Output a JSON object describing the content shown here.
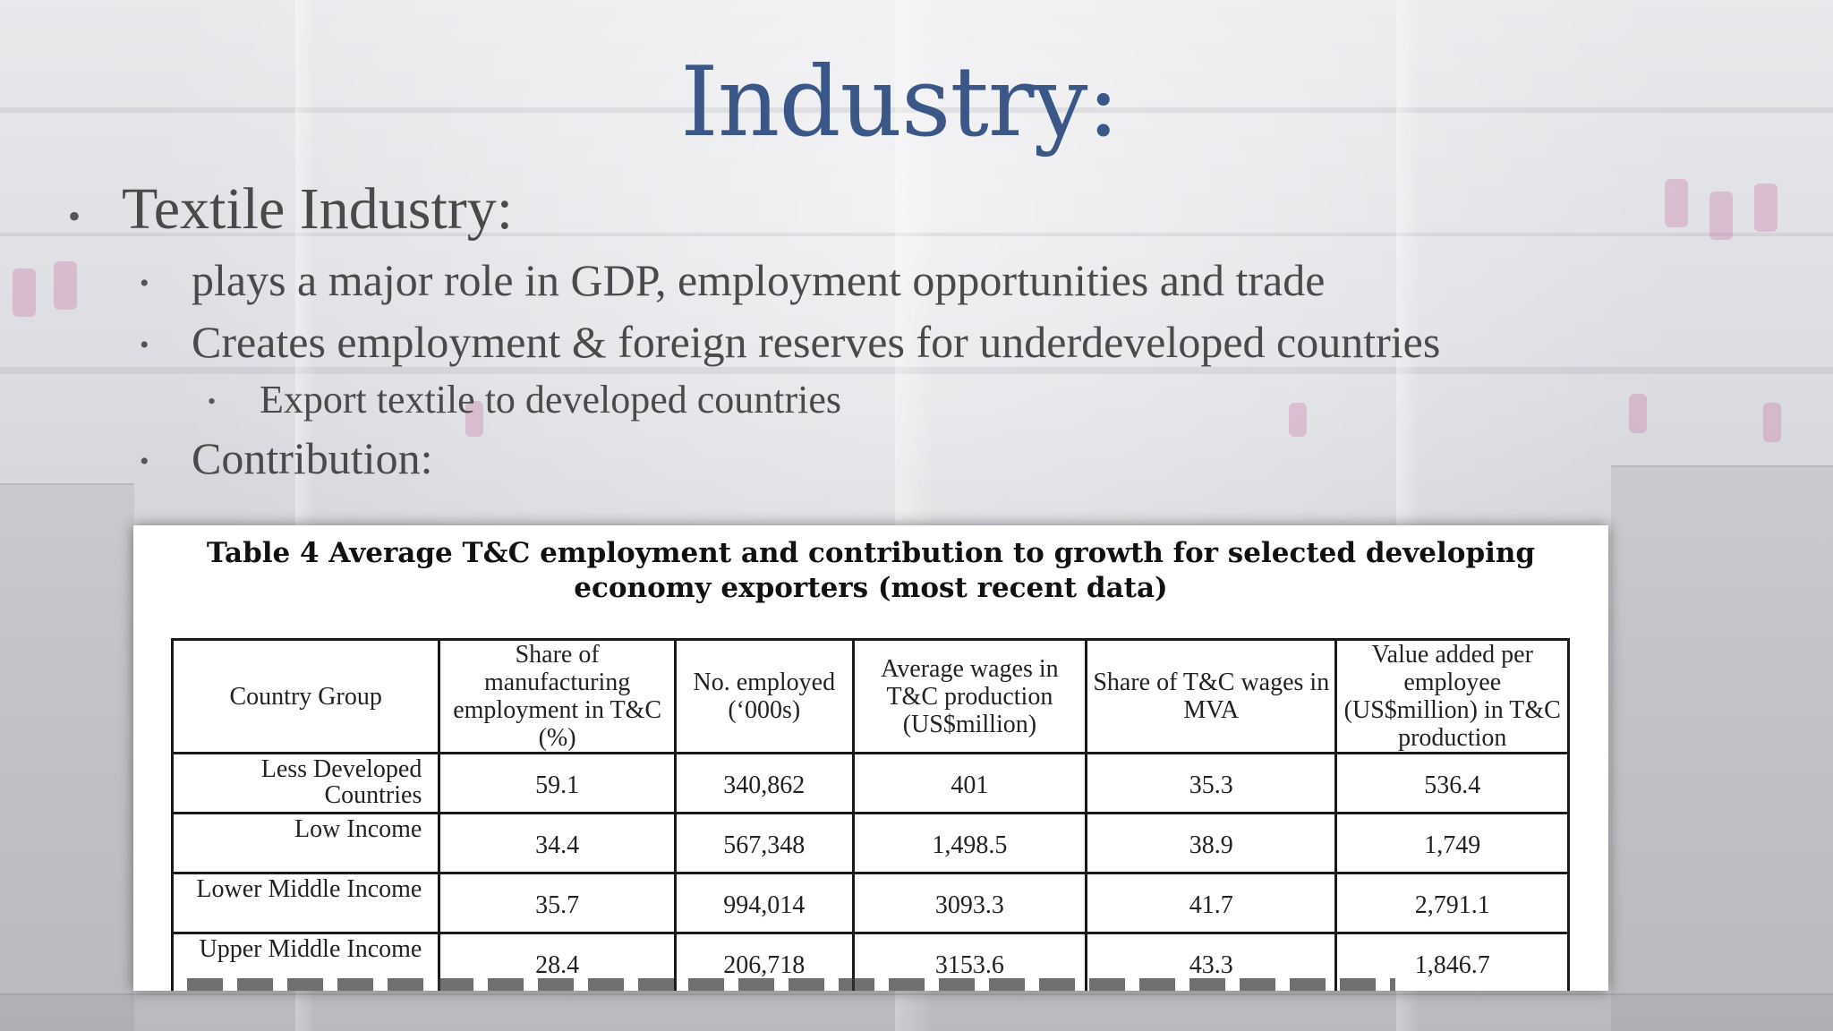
{
  "slide": {
    "title": "Industry:",
    "bullets": [
      {
        "level": 1,
        "text": "Textile Industry:"
      },
      {
        "level": 2,
        "text": "plays a major role in GDP, employment opportunities and trade"
      },
      {
        "level": 2,
        "text": "Creates employment & foreign reserves for underdeveloped countries"
      },
      {
        "level": 3,
        "text": "Export textile to developed countries"
      },
      {
        "level": 2,
        "text": "Contribution:"
      }
    ],
    "bullet_glyph": "•",
    "colors": {
      "title": "#3b5787",
      "body_text": "#4a4a4a"
    }
  },
  "table": {
    "caption_line1": "Table 4 Average T&C employment and contribution to growth for selected developing",
    "caption_line2": "economy exporters (most recent data)",
    "headers": [
      "Country Group",
      "Share of manufacturing employment in T&C (%)",
      "No. employed (‘000s)",
      "Average wages in T&C production (US$million)",
      "Share of T&C wages in MVA",
      "Value added per employee (US$million) in T&C production"
    ],
    "rows": [
      [
        "Less Developed Countries",
        "59.1",
        "340,862",
        "401",
        "35.3",
        "536.4"
      ],
      [
        "Low Income",
        "34.4",
        "567,348",
        "1,498.5",
        "38.9",
        "1,749"
      ],
      [
        "Lower Middle Income",
        "35.7",
        "994,014",
        "3093.3",
        "41.7",
        "2,791.1"
      ],
      [
        "Upper Middle Income",
        "28.4",
        "206,718",
        "3153.6",
        "43.3",
        "1,846.7"
      ]
    ]
  }
}
